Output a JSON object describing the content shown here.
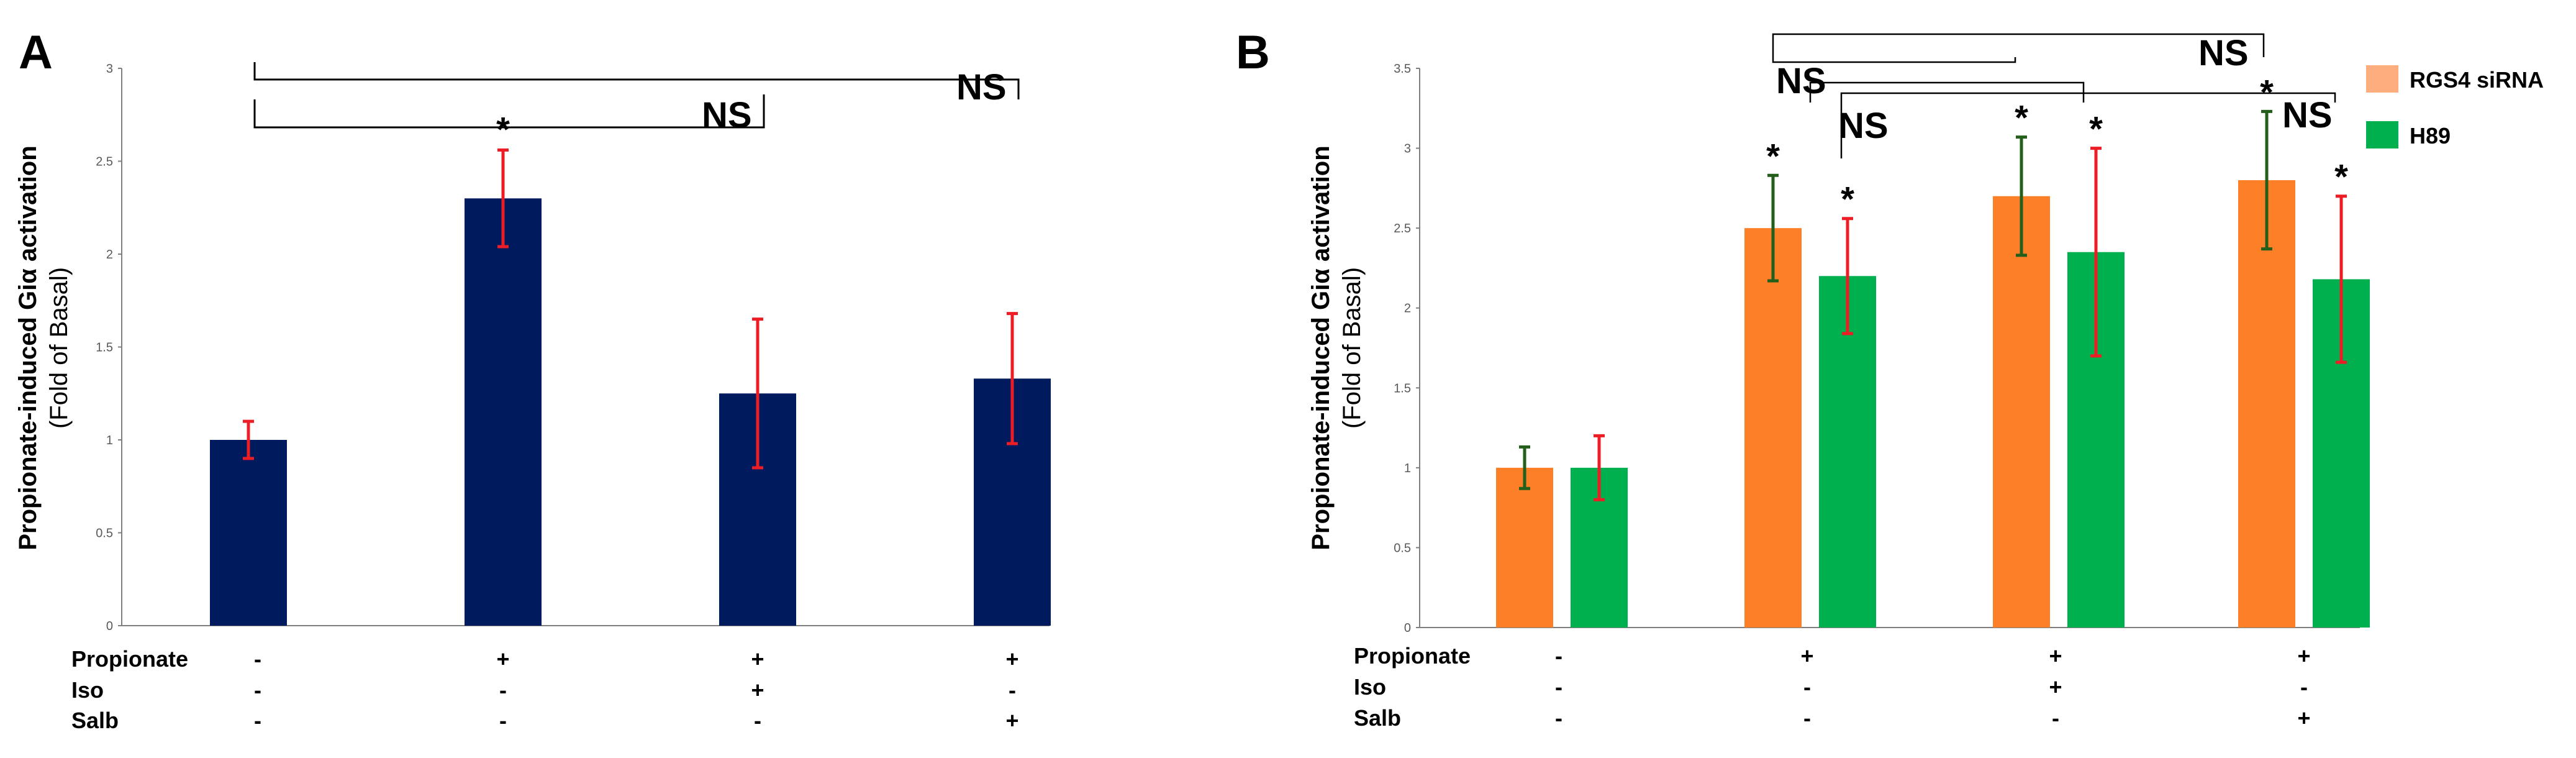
{
  "chart_data": [
    {
      "panel": "A",
      "type": "bar",
      "ylabel": "Propionate-induced Giα activation",
      "ylabel_sub": "(Fold of Basal)",
      "ylim": [
        0,
        3
      ],
      "yticks": [
        "0",
        "0.5",
        "1",
        "1.5",
        "2",
        "2.5",
        "3"
      ],
      "categories": [
        "basal",
        "propionate",
        "propionate+iso",
        "propionate+salb"
      ],
      "values": [
        1.0,
        2.3,
        1.25,
        1.33
      ],
      "errors": [
        0.1,
        0.26,
        0.4,
        0.35
      ],
      "bar_color": "#001a5e",
      "error_color": "#ee1c24",
      "significance": [
        "",
        "*",
        "",
        ""
      ],
      "ns_labels": [
        "NS",
        "NS"
      ],
      "conditions": [
        {
          "label": "Propionate",
          "values": [
            "-",
            "+",
            "+",
            "+"
          ]
        },
        {
          "label": "Iso",
          "values": [
            "-",
            "-",
            "+",
            "-"
          ]
        },
        {
          "label": "Salb",
          "values": [
            "-",
            "-",
            "-",
            "+"
          ]
        }
      ]
    },
    {
      "panel": "B",
      "type": "bar",
      "ylabel": "Propionate-induced Giα activation",
      "ylabel_sub": "(Fold of Basal)",
      "ylim": [
        0,
        3.5
      ],
      "yticks": [
        "0",
        "0.5",
        "1",
        "1.5",
        "2",
        "2.5",
        "3",
        "3.5"
      ],
      "categories": [
        "basal",
        "propionate",
        "propionate+iso",
        "propionate+salb"
      ],
      "legend": "top-right",
      "series": [
        {
          "name": "RGS4 siRNA",
          "color": "#fd7f28",
          "legend_color": "#fdad7e",
          "error_color": "#245e1b",
          "values": [
            1.0,
            2.5,
            2.7,
            2.8
          ],
          "errors": [
            0.13,
            0.33,
            0.37,
            0.43
          ],
          "significance": [
            "",
            "*",
            "*",
            "*"
          ]
        },
        {
          "name": "H89",
          "color": "#00b04f",
          "legend_color": "#00b04f",
          "error_color": "#ee1c24",
          "values": [
            1.0,
            2.2,
            2.35,
            2.18
          ],
          "errors": [
            0.2,
            0.36,
            0.65,
            0.52
          ],
          "significance": [
            "",
            "*",
            "*",
            "*"
          ]
        }
      ],
      "ns_labels": [
        "NS",
        "NS",
        "NS",
        "NS"
      ],
      "conditions": [
        {
          "label": "Propionate",
          "values": [
            "-",
            "+",
            "+",
            "+"
          ]
        },
        {
          "label": "Iso",
          "values": [
            "-",
            "-",
            "+",
            "-"
          ]
        },
        {
          "label": "Salb",
          "values": [
            "-",
            "-",
            "-",
            "+"
          ]
        }
      ]
    }
  ]
}
